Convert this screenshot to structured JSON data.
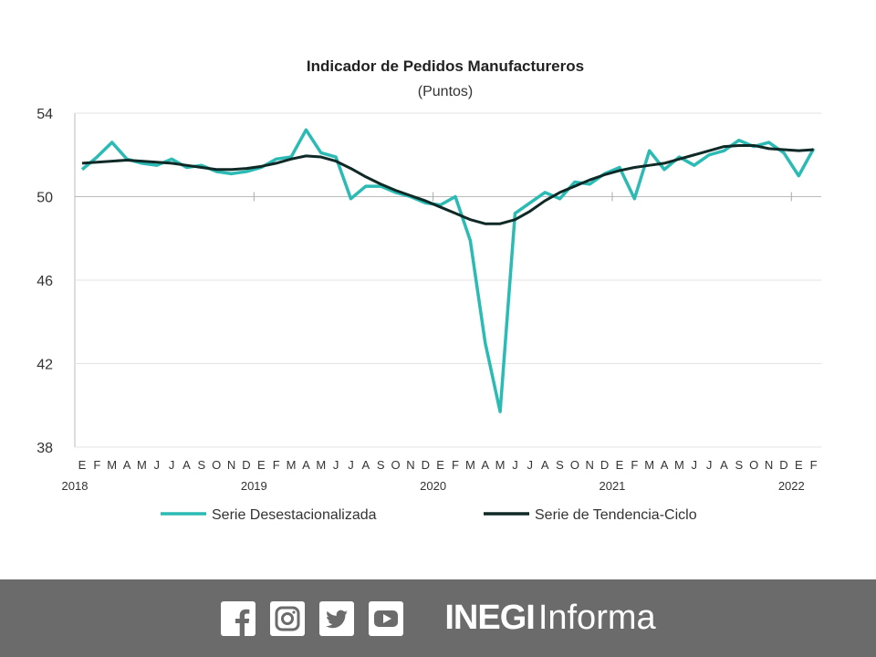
{
  "chart_data": {
    "type": "line",
    "title": "Indicador de Pedidos Manufactureros",
    "subtitle": "(Puntos)",
    "ylim": [
      38,
      54
    ],
    "yticks": [
      38,
      42,
      46,
      50,
      54
    ],
    "month_labels": [
      "E",
      "F",
      "M",
      "A",
      "M",
      "J",
      "J",
      "A",
      "S",
      "O",
      "N",
      "D"
    ],
    "years": [
      "2018",
      "2019",
      "2020",
      "2021",
      "2022"
    ],
    "x_start": "2018-01",
    "x_end": "2022-02",
    "grid": "horizontal",
    "legend_position": "bottom",
    "series": [
      {
        "name": "Serie Desestacionalizada",
        "color": "#2bbbb4",
        "values": [
          51.3,
          51.9,
          52.6,
          51.8,
          51.6,
          51.5,
          51.8,
          51.4,
          51.5,
          51.2,
          51.1,
          51.2,
          51.4,
          51.8,
          51.9,
          53.2,
          52.1,
          51.9,
          49.9,
          50.5,
          50.5,
          50.2,
          50.0,
          49.7,
          49.6,
          50.0,
          47.9,
          43.0,
          39.7,
          49.2,
          49.7,
          50.2,
          49.9,
          50.7,
          50.6,
          51.1,
          51.4,
          49.9,
          52.2,
          51.3,
          51.9,
          51.5,
          52.0,
          52.2,
          52.7,
          52.4,
          52.6,
          52.1,
          51.0,
          52.3
        ]
      },
      {
        "name": "Serie de Tendencia-Ciclo",
        "color": "#0f2a26",
        "values": [
          51.6,
          51.65,
          51.7,
          51.75,
          51.7,
          51.65,
          51.6,
          51.5,
          51.4,
          51.3,
          51.3,
          51.35,
          51.45,
          51.6,
          51.8,
          51.95,
          51.9,
          51.7,
          51.35,
          50.95,
          50.6,
          50.3,
          50.05,
          49.8,
          49.5,
          49.2,
          48.9,
          48.7,
          48.7,
          48.9,
          49.3,
          49.8,
          50.2,
          50.5,
          50.8,
          51.05,
          51.25,
          51.4,
          51.5,
          51.6,
          51.8,
          52.0,
          52.2,
          52.4,
          52.45,
          52.45,
          52.3,
          52.25,
          52.2,
          52.25
        ]
      }
    ]
  },
  "footer": {
    "icons": [
      "facebook-icon",
      "instagram-icon",
      "twitter-icon",
      "youtube-icon"
    ],
    "brand_bold": "INEGI",
    "brand_light": "Informa"
  }
}
